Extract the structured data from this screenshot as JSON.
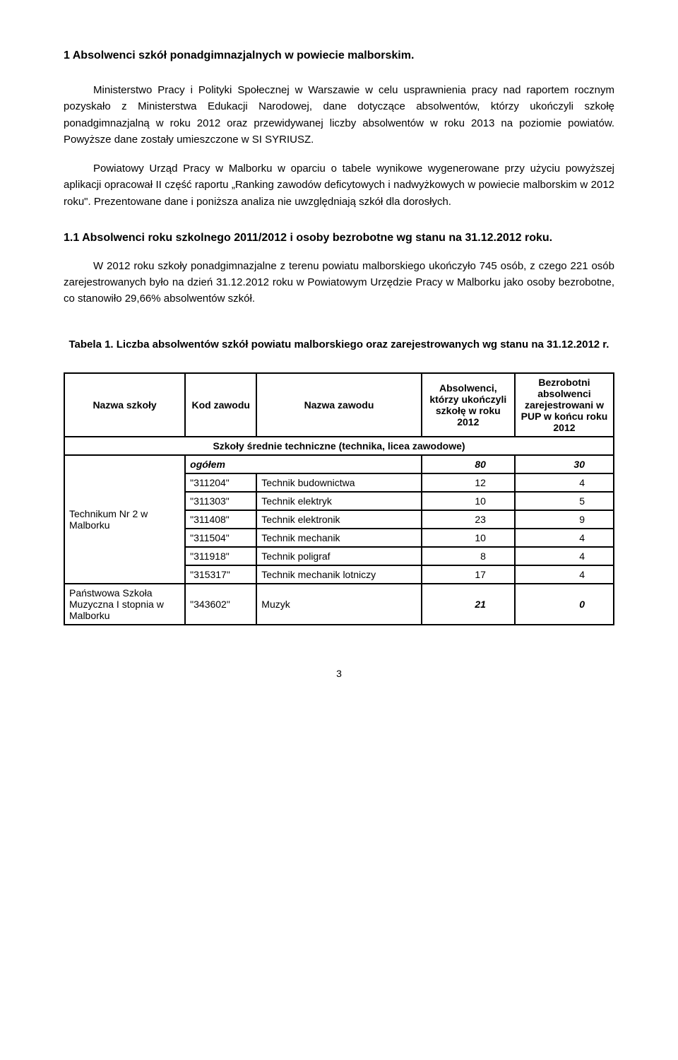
{
  "title": "1   Absolwenci szkół ponadgimnazjalnych w powiecie malborskim.",
  "para1": "Ministerstwo Pracy i Polityki Społecznej w Warszawie w celu usprawnienia pracy nad raportem rocznym pozyskało z Ministerstwa Edukacji Narodowej, dane dotyczące absolwentów, którzy ukończyli szkołę ponadgimnazjalną w roku 2012 oraz przewidywanej liczby absolwentów w roku 2013 na poziomie powiatów. Powyższe dane zostały umieszczone w SI SYRIUSZ.",
  "para2": "Powiatowy Urząd Pracy w Malborku w oparciu o tabele wynikowe wygenerowane przy użyciu powyższej aplikacji opracował II część raportu „Ranking zawodów deficytowych i nadwyżkowych w powiecie malborskim w 2012 roku\". Prezentowane dane i poniższa analiza nie uwzględniają szkół dla dorosłych.",
  "subheading": "1.1 Absolwenci roku szkolnego 2011/2012 i osoby bezrobotne wg stanu na 31.12.2012 roku.",
  "para3": "W 2012 roku szkoły ponadgimnazjalne z terenu powiatu malborskiego ukończyło 745 osób, z czego 221 osób zarejestrowanych było na dzień 31.12.2012 roku w Powiatowym Urzędzie Pracy w Malborku jako osoby bezrobotne, co stanowiło 29,66% absolwentów szkół.",
  "table_caption": "Tabela 1. Liczba absolwentów szkół powiatu malborskiego oraz zarejestrowanych wg stanu na 31.12.2012 r.",
  "headers": {
    "school": "Nazwa szkoły",
    "code": "Kod zawodu",
    "name": "Nazwa zawodu",
    "grad": "Absolwenci, którzy ukończyli szkołę w roku 2012",
    "unemp": "Bezrobotni absolwenci zarejestrowani w PUP w końcu roku 2012",
    "subheader": "Szkoły średnie techniczne (technika, licea zawodowe)"
  },
  "ogolem_label": "ogółem",
  "ogolem_grad": "80",
  "ogolem_unemp": "30",
  "school1": "Technikum Nr 2 w Malborku",
  "school2": "Państwowa Szkoła Muzyczna I stopnia w Malborku",
  "rows": [
    {
      "code": "\"311204\"",
      "name": "Technik budownictwa",
      "grad": "12",
      "unemp": "4"
    },
    {
      "code": "\"311303\"",
      "name": "Technik elektryk",
      "grad": "10",
      "unemp": "5"
    },
    {
      "code": "\"311408\"",
      "name": "Technik elektronik",
      "grad": "23",
      "unemp": "9"
    },
    {
      "code": "\"311504\"",
      "name": "Technik mechanik",
      "grad": "10",
      "unemp": "4"
    },
    {
      "code": "\"311918\"",
      "name": "Technik poligraf",
      "grad": "8",
      "unemp": "4"
    },
    {
      "code": "\"315317\"",
      "name": "Technik mechanik lotniczy",
      "grad": "17",
      "unemp": "4"
    }
  ],
  "muzyk": {
    "code": "\"343602\"",
    "name": "Muzyk",
    "grad": "21",
    "unemp": "0"
  },
  "pagenum": "3"
}
